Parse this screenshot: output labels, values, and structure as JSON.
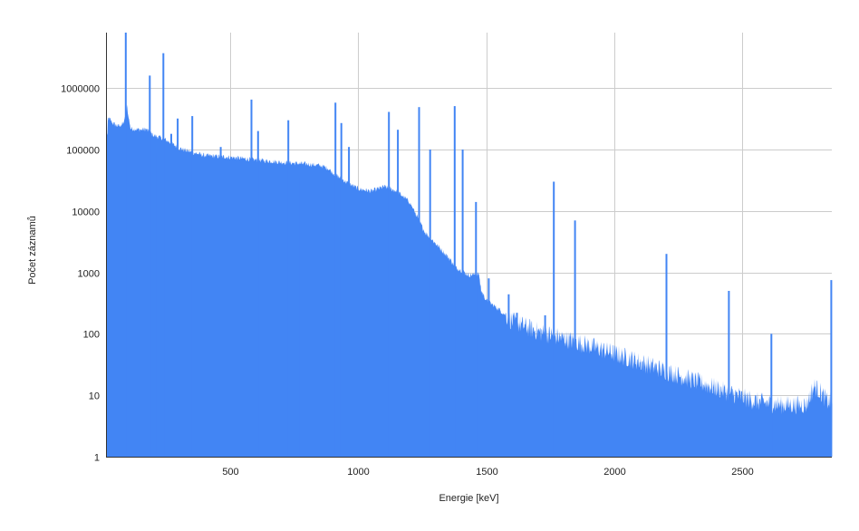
{
  "chart_data": {
    "type": "area",
    "title": "",
    "xlabel": "Energie [keV]",
    "ylabel": "Počet záznamů",
    "xlim": [
      15,
      2850
    ],
    "ylim": [
      1,
      8000000
    ],
    "yscale": "log",
    "grid": true,
    "legend": "none",
    "x_ticks": [
      500,
      1000,
      1500,
      2000,
      2500
    ],
    "x_tick_labels": [
      "500",
      "1000",
      "1500",
      "2000",
      "2500"
    ],
    "y_ticks": [
      1,
      10,
      100,
      1000,
      10000,
      100000,
      1000000
    ],
    "y_tick_labels": [
      "1",
      "10",
      "100",
      "1000",
      "10000",
      "100000",
      "1000000"
    ],
    "series": [
      {
        "color": "#4285f4",
        "baseline": [
          [
            15,
            35000
          ],
          [
            20,
            320000
          ],
          [
            30,
            310000
          ],
          [
            40,
            270000
          ],
          [
            60,
            240000
          ],
          [
            80,
            260000
          ],
          [
            92,
            350000
          ],
          [
            98,
            600000
          ],
          [
            100,
            380000
          ],
          [
            110,
            220000
          ],
          [
            150,
            210000
          ],
          [
            170,
            215000
          ],
          [
            200,
            170000
          ],
          [
            240,
            150000
          ],
          [
            300,
            105000
          ],
          [
            350,
            90000
          ],
          [
            400,
            80000
          ],
          [
            500,
            75000
          ],
          [
            600,
            68000
          ],
          [
            700,
            62000
          ],
          [
            750,
            60000
          ],
          [
            800,
            58000
          ],
          [
            850,
            55000
          ],
          [
            880,
            50000
          ],
          [
            900,
            42000
          ],
          [
            950,
            30000
          ],
          [
            1000,
            23000
          ],
          [
            1050,
            21000
          ],
          [
            1100,
            25000
          ],
          [
            1150,
            21000
          ],
          [
            1200,
            14000
          ],
          [
            1230,
            8000
          ],
          [
            1260,
            4500
          ],
          [
            1300,
            3000
          ],
          [
            1330,
            2200
          ],
          [
            1360,
            1600
          ],
          [
            1380,
            1200
          ],
          [
            1400,
            1100
          ],
          [
            1430,
            900
          ],
          [
            1470,
            950
          ],
          [
            1480,
            500
          ],
          [
            1500,
            350
          ],
          [
            1550,
            250
          ],
          [
            1600,
            160
          ],
          [
            1700,
            110
          ],
          [
            1800,
            85
          ],
          [
            1900,
            65
          ],
          [
            2000,
            48
          ],
          [
            2100,
            35
          ],
          [
            2200,
            25
          ],
          [
            2300,
            18
          ],
          [
            2400,
            13
          ],
          [
            2480,
            10
          ],
          [
            2550,
            8
          ],
          [
            2650,
            7
          ],
          [
            2750,
            7
          ],
          [
            2780,
            14
          ],
          [
            2800,
            12
          ],
          [
            2830,
            8
          ],
          [
            2845,
            8
          ],
          [
            2850,
            8
          ]
        ],
        "peaks": [
          [
            92,
            8000000
          ],
          [
            186,
            1600000
          ],
          [
            209,
            90000
          ],
          [
            239,
            3700000
          ],
          [
            270,
            180000
          ],
          [
            295,
            320000
          ],
          [
            352,
            350000
          ],
          [
            463,
            110000
          ],
          [
            583,
            650000
          ],
          [
            609,
            200000
          ],
          [
            727,
            300000
          ],
          [
            768,
            35000
          ],
          [
            911,
            580000
          ],
          [
            934,
            270000
          ],
          [
            964,
            110000
          ],
          [
            1120,
            410000
          ],
          [
            1155,
            210000
          ],
          [
            1238,
            490000
          ],
          [
            1281,
            100000
          ],
          [
            1377,
            510000
          ],
          [
            1408,
            100000
          ],
          [
            1460,
            14000
          ],
          [
            1510,
            800
          ],
          [
            1588,
            440
          ],
          [
            1620,
            220
          ],
          [
            1730,
            200
          ],
          [
            1764,
            30000
          ],
          [
            1847,
            7000
          ],
          [
            2204,
            2000
          ],
          [
            2448,
            500
          ],
          [
            2614,
            100
          ],
          [
            2848,
            750
          ]
        ]
      }
    ]
  }
}
